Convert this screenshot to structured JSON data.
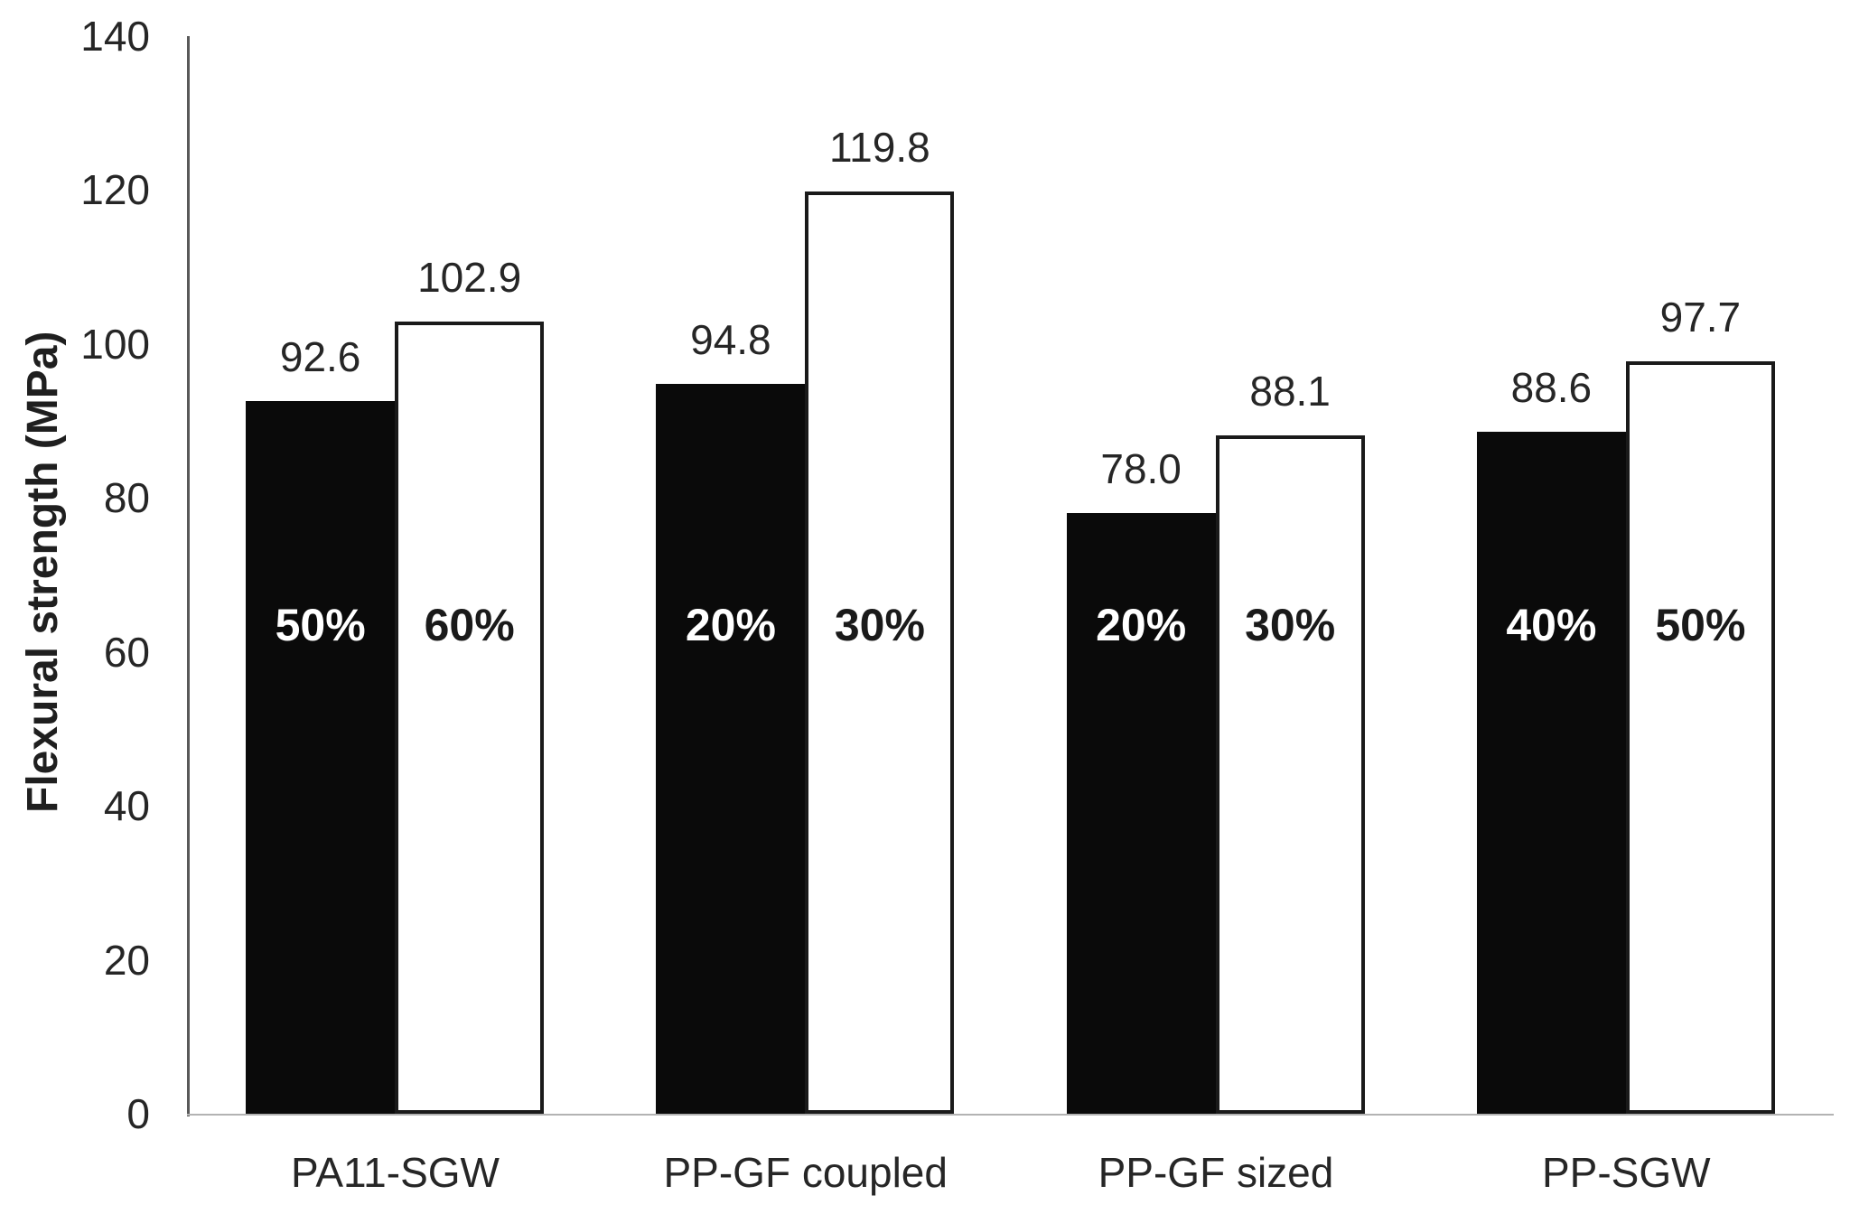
{
  "chart_data": {
    "type": "bar",
    "title": "",
    "xlabel": "",
    "ylabel": "Flexural strength (MPa)",
    "ylim": [
      0,
      140
    ],
    "yticks": [
      0,
      20,
      40,
      60,
      80,
      100,
      120,
      140
    ],
    "grid": false,
    "legend": "none",
    "categories": [
      "PA11-SGW",
      "PP-GF coupled",
      "PP-GF sized",
      "PP-SGW"
    ],
    "series": [
      {
        "fill": "black",
        "values": [
          92.6,
          94.8,
          78.0,
          88.6
        ],
        "value_labels": [
          "92.6",
          "94.8",
          "78.0",
          "88.6"
        ],
        "bar_labels": [
          "50%",
          "20%",
          "20%",
          "40%"
        ]
      },
      {
        "fill": "white",
        "values": [
          102.9,
          119.8,
          88.1,
          97.7
        ],
        "value_labels": [
          "102.9",
          "119.8",
          "88.1",
          "97.7"
        ],
        "bar_labels": [
          "60%",
          "30%",
          "30%",
          "50%"
        ]
      }
    ]
  },
  "colors": {
    "bar_black": "#0a0a0a",
    "bar_white": "#ffffff",
    "bar_border": "#1a1a1a",
    "text": "#262626",
    "label_on_black": "#ffffff",
    "label_on_white": "#1a1a1a",
    "y_axis_line": "#595959",
    "x_axis_line": "#b3b3b3",
    "background": "#ffffff"
  }
}
